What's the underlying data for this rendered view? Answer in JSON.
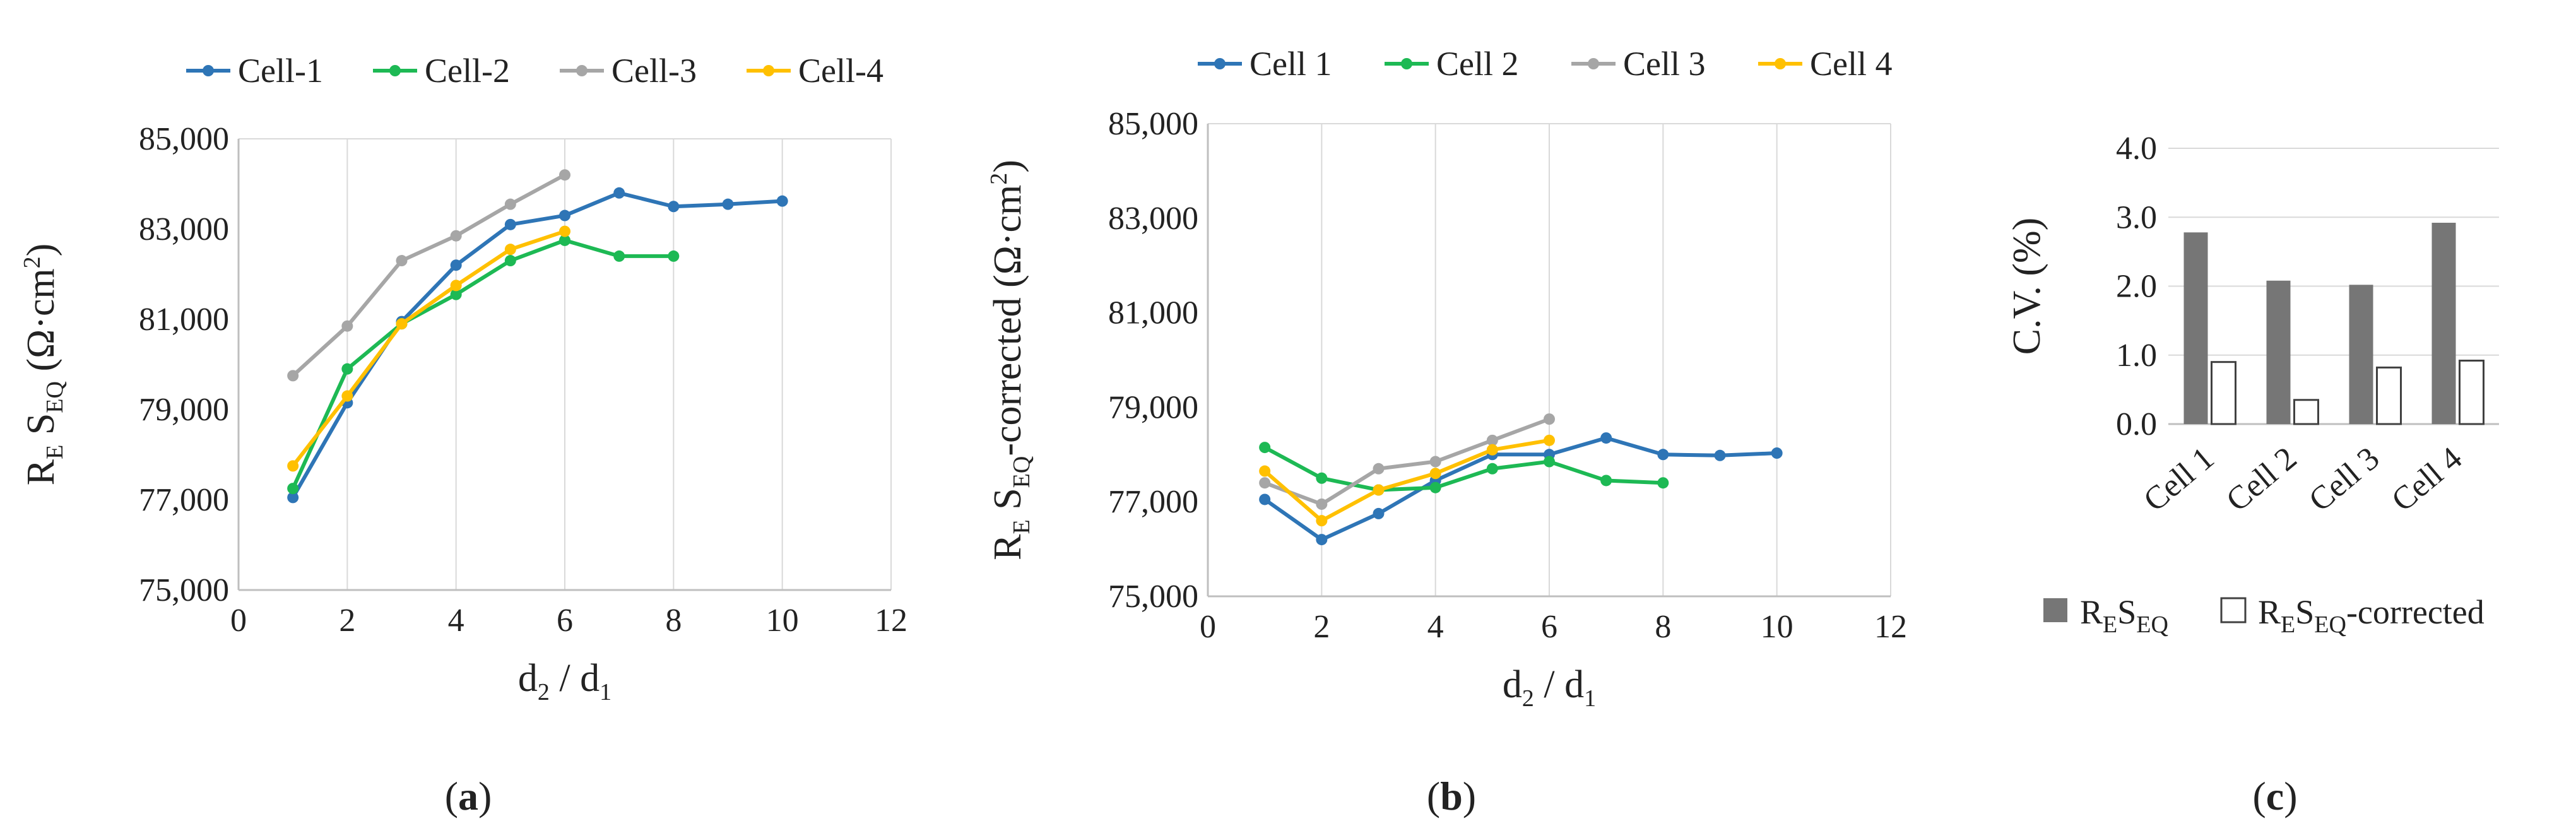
{
  "chart_data": [
    {
      "type": "line",
      "xlabel": {
        "main": "d",
        "sub": "2",
        "mid": " / d",
        "sub2": "1"
      },
      "ylabel": {
        "pre": "R",
        "sub1": "E",
        "mid": " S",
        "sub2": "EQ",
        "unit": " (Ω·cm",
        "sup": "2",
        "end": ")"
      },
      "xlim": [
        0,
        12
      ],
      "ylim": [
        75000,
        85000
      ],
      "xticks": [
        "0",
        "2",
        "4",
        "6",
        "8",
        "10",
        "12"
      ],
      "yticks": [
        "75,000",
        "77,000",
        "79,000",
        "81,000",
        "83,000",
        "85,000"
      ],
      "grid": "vertical",
      "legend_position": "top",
      "series": [
        {
          "name": "Cell-1",
          "color": "#2e75b6",
          "x": [
            1,
            2,
            3,
            4,
            5,
            6,
            7,
            8,
            9,
            10
          ],
          "y": [
            77050,
            79150,
            80950,
            82200,
            83100,
            83300,
            83800,
            83500,
            83550,
            83620
          ]
        },
        {
          "name": "Cell-2",
          "color": "#1db954",
          "x": [
            1,
            2,
            3,
            4,
            5,
            6,
            7,
            8
          ],
          "y": [
            77250,
            79900,
            80900,
            81550,
            82300,
            82750,
            82400,
            82400
          ]
        },
        {
          "name": "Cell-3",
          "color": "#a6a6a6",
          "x": [
            1,
            2,
            3,
            4,
            5,
            6
          ],
          "y": [
            79750,
            80850,
            82300,
            82850,
            83550,
            84200
          ]
        },
        {
          "name": "Cell-4",
          "color": "#ffc000",
          "x": [
            1,
            2,
            3,
            4,
            5,
            6
          ],
          "y": [
            77750,
            79300,
            80900,
            81750,
            82550,
            82950
          ]
        }
      ],
      "panel_label": {
        "open": "(",
        "letter": "a",
        "close": ")"
      }
    },
    {
      "type": "line",
      "xlabel": {
        "main": "d",
        "sub": "2",
        "mid": " / d",
        "sub2": "1"
      },
      "ylabel": {
        "pre": "R",
        "sub1": "E",
        "mid": " S",
        "sub2": "EQ",
        "unit": "-corrected (Ω·cm",
        "sup": "2",
        "end": ")"
      },
      "xlim": [
        0,
        12
      ],
      "ylim": [
        75000,
        85000
      ],
      "xticks": [
        "0",
        "2",
        "4",
        "6",
        "8",
        "10",
        "12"
      ],
      "yticks": [
        "75,000",
        "77,000",
        "79,000",
        "81,000",
        "83,000",
        "85,000"
      ],
      "grid": "vertical",
      "legend_position": "top",
      "series": [
        {
          "name": "Cell 1",
          "color": "#2e75b6",
          "x": [
            1,
            2,
            3,
            4,
            5,
            6,
            7,
            8,
            9,
            10
          ],
          "y": [
            77050,
            76200,
            76750,
            77450,
            78000,
            78000,
            78350,
            78000,
            77980,
            78030
          ]
        },
        {
          "name": "Cell 2",
          "color": "#1db954",
          "x": [
            1,
            2,
            3,
            4,
            5,
            6,
            7,
            8
          ],
          "y": [
            78150,
            77500,
            77250,
            77300,
            77700,
            77850,
            77450,
            77400
          ]
        },
        {
          "name": "Cell 3",
          "color": "#a6a6a6",
          "x": [
            1,
            2,
            3,
            4,
            5,
            6
          ],
          "y": [
            77400,
            76950,
            77700,
            77850,
            78300,
            78750
          ]
        },
        {
          "name": "Cell 4",
          "color": "#ffc000",
          "x": [
            1,
            2,
            3,
            4,
            5,
            6
          ],
          "y": [
            77650,
            76600,
            77250,
            77600,
            78100,
            78300
          ]
        }
      ],
      "panel_label": {
        "open": "(",
        "letter": "b",
        "close": ")"
      }
    },
    {
      "type": "bar",
      "categories": [
        "Cell 1",
        "Cell 2",
        "Cell 3",
        "Cell 4"
      ],
      "ylabel": "C.V. (%)",
      "ylim": [
        0,
        4
      ],
      "yticks": [
        "0.0",
        "1.0",
        "2.0",
        "3.0",
        "4.0"
      ],
      "grid": "horizontal",
      "legend_position": "bottom",
      "series": [
        {
          "name": "RESEQ",
          "name_parts": {
            "pre": "R",
            "sub1": "E",
            "mid": "S",
            "sub2": "EQ",
            "post": ""
          },
          "color": "#767676",
          "values": [
            2.78,
            2.08,
            2.02,
            2.92
          ]
        },
        {
          "name": "RESEQ-corrected",
          "name_parts": {
            "pre": "R",
            "sub1": "E",
            "mid": "S",
            "sub2": "EQ",
            "post": "-corrected"
          },
          "color": "#ffffff",
          "values": [
            0.9,
            0.35,
            0.82,
            0.92
          ]
        }
      ],
      "panel_label": {
        "open": "(",
        "letter": "c",
        "close": ")"
      }
    }
  ]
}
